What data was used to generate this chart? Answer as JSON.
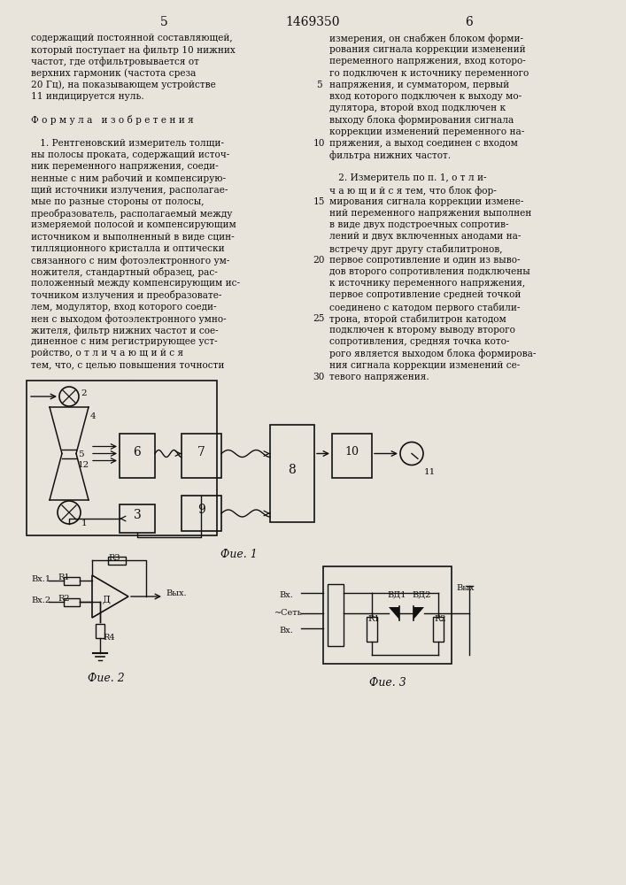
{
  "title_number": "1469350",
  "page_left": "5",
  "page_right": "6",
  "bg_color": "#e8e4dc",
  "text_color": "#111111",
  "left_col_text": [
    "содержащий постоянной составляющей,",
    "который поступает на фильтр 10 нижних",
    "частот, где отфильтровывается от",
    "верхних гармоник (частота среза",
    "20 Гц), на показывающем устройстве",
    "11 индицируется нуль.",
    "",
    "Ф о р м у л а   и з о б р е т е н и я",
    "",
    "   1. Рентгеновский измеритель толщи-",
    "ны полосы проката, содержащий источ-",
    "ник переменного напряжения, соеди-",
    "ненные с ним рабочий и компенсирую-",
    "щий источники излучения, располагае-",
    "мые по разные стороны от полосы,",
    "преобразователь, располагаемый между",
    "измеряемой полосой и компенсирующим",
    "источником и выполненный в виде сцин-",
    "тилляционного кристалла и оптически",
    "связанного с ним фотоэлектронного ум-",
    "ножителя, стандартный образец, рас-",
    "положенный между компенсирующим ис-",
    "точником излучения и преобразовате-",
    "лем, модулятор, вход которого соеди-",
    "нен с выходом фотоэлектронного умно-",
    "жителя, фильтр нижних частот и сое-",
    "диненное с ним регистрирующее уст-",
    "ройство, о т л и ч а ю щ и й с я",
    "тем, что, с целью повышения точности"
  ],
  "right_col_text": [
    "измерения, он снабжен блоком форми-",
    "рования сигнала коррекции изменений",
    "переменного напряжения, вход которо-",
    "го подключен к источнику переменного",
    "напряжения, и сумматором, первый",
    "вход которого подключен к выходу мо-",
    "дулятора, второй вход подключен к",
    "выходу блока формирования сигнала",
    "коррекции изменений переменного на-",
    "пряжения, а выход соединен с входом",
    "фильтра нижних частот.",
    "",
    "   2. Измеритель по п. 1, о т л и-",
    "ч а ю щ и й с я тем, что блок фор-",
    "мирования сигнала коррекции измене-",
    "ний переменного напряжения выполнен",
    "в виде двух подстроечных сопротив-",
    "лений и двух включенных анодами на-",
    "встречу друг другу стабилитронов,",
    "первое сопротивление и один из выво-",
    "дов второго сопротивления подключены",
    "к источнику переменного напряжения,",
    "первое сопротивление средней точкой",
    "соединено с катодом первого стабили-",
    "трона, второй стабилитрон катодом",
    "подключен к второму выводу второго",
    "сопротивления, средняя точка кото-",
    "рого является выходом блока формирова-",
    "ния сигнала коррекции изменений се-",
    "тевого напряжения."
  ],
  "line_numbers_y": [
    4,
    9,
    14,
    19,
    24,
    29
  ],
  "line_numbers": [
    "5",
    "10",
    "15",
    "20",
    "25",
    "30"
  ],
  "fig1_caption": "Фuе. 1",
  "fig2_caption": "Фuе. 2",
  "fig3_caption": "Фuе. 3"
}
